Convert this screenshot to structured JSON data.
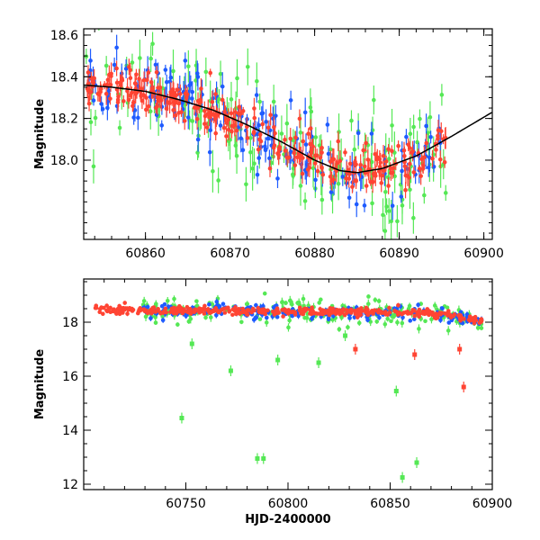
{
  "chart_data": [
    {
      "type": "scatter",
      "panel": "top",
      "xlim": [
        60852.7,
        60901.0
      ],
      "ylim": [
        18.63,
        17.62
      ],
      "y_inverted": true,
      "xticks": [
        60860,
        60870,
        60880,
        60890,
        60900
      ],
      "yticks": [
        18.0,
        18.2,
        18.4,
        18.6
      ],
      "xlabel": "",
      "ylabel": "Magnitude",
      "grid": false,
      "colors": {
        "blue": "#1e5bff",
        "green": "#55e855",
        "red": "#ff4433",
        "model": "#000000"
      },
      "model_curve": {
        "x": [
          60852.7,
          60856,
          60860,
          60864,
          60868,
          60872,
          60876,
          60880,
          60883,
          60885,
          60888,
          60892,
          60896,
          60901
        ],
        "y": [
          18.36,
          18.35,
          18.33,
          18.29,
          18.24,
          18.17,
          18.09,
          18.0,
          17.95,
          17.94,
          17.96,
          18.02,
          18.11,
          18.23
        ]
      },
      "series": [
        {
          "color": "green",
          "n": 150,
          "scatter": 0.14,
          "err": 0.06
        },
        {
          "color": "blue",
          "n": 160,
          "scatter": 0.08,
          "err": 0.04
        },
        {
          "color": "red",
          "n": 320,
          "scatter": 0.05,
          "err": 0.03
        }
      ]
    },
    {
      "type": "scatter",
      "panel": "bottom",
      "xlim": [
        60700,
        60900
      ],
      "ylim": [
        19.6,
        11.8
      ],
      "y_inverted": true,
      "xticks": [
        60750,
        60800,
        60850,
        60900
      ],
      "yticks": [
        12,
        14,
        16,
        18
      ],
      "xlabel": "HJD-2400000",
      "ylabel": "Magnitude",
      "grid": false,
      "outliers": [
        {
          "x": 60748,
          "y": 14.45,
          "color": "green"
        },
        {
          "x": 60785,
          "y": 12.95,
          "color": "green"
        },
        {
          "x": 60788,
          "y": 12.95,
          "color": "green"
        },
        {
          "x": 60795,
          "y": 16.6,
          "color": "green"
        },
        {
          "x": 60772,
          "y": 16.2,
          "color": "green"
        },
        {
          "x": 60753,
          "y": 17.2,
          "color": "green"
        },
        {
          "x": 60815,
          "y": 16.5,
          "color": "green"
        },
        {
          "x": 60853,
          "y": 15.45,
          "color": "green"
        },
        {
          "x": 60856,
          "y": 12.25,
          "color": "green"
        },
        {
          "x": 60863,
          "y": 12.8,
          "color": "green"
        },
        {
          "x": 60862,
          "y": 16.8,
          "color": "red"
        },
        {
          "x": 60886,
          "y": 15.6,
          "color": "red"
        },
        {
          "x": 60884,
          "y": 17.0,
          "color": "red"
        },
        {
          "x": 60833,
          "y": 17.0,
          "color": "red"
        },
        {
          "x": 60828,
          "y": 17.5,
          "color": "green"
        }
      ],
      "series": [
        {
          "color": "green",
          "n": 220,
          "scatter": 0.22,
          "err": 0.1
        },
        {
          "color": "blue",
          "n": 200,
          "scatter": 0.14,
          "err": 0.07
        },
        {
          "color": "red",
          "n": 420,
          "scatter": 0.07,
          "err": 0.05
        }
      ]
    }
  ]
}
